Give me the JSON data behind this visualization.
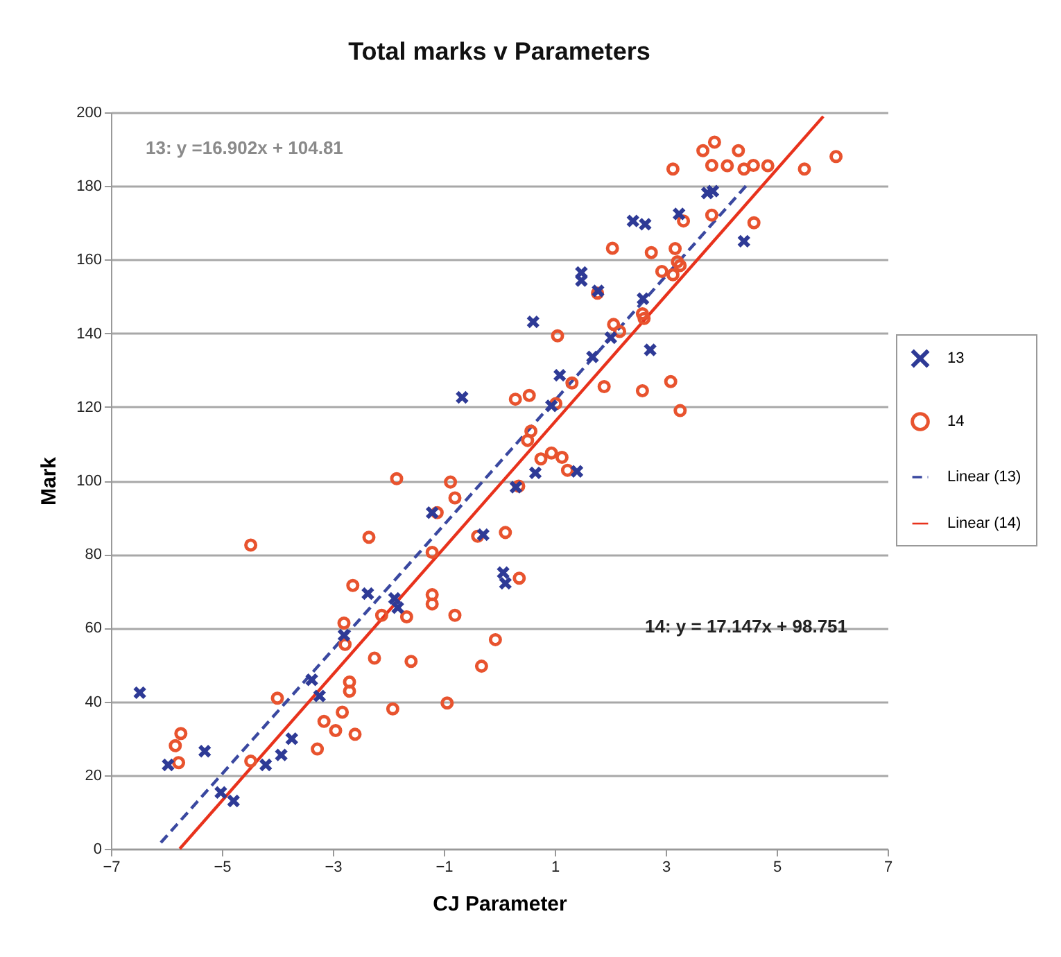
{
  "chart_data": {
    "type": "scatter",
    "title": "Total marks  v  Parameters",
    "xlabel": "CJ Parameter",
    "ylabel": "Mark",
    "xlim": [
      -7,
      7
    ],
    "xticks": [
      -7,
      -5,
      -3,
      -1,
      1,
      3,
      5,
      7
    ],
    "ylim": [
      0,
      200
    ],
    "yticks": [
      0,
      20,
      40,
      60,
      80,
      100,
      120,
      140,
      160,
      180,
      200
    ],
    "grid": "y",
    "legend": "right",
    "annotations": [
      "13: y =16.902x + 104.81",
      "14: y = 17.147x + 98.751"
    ],
    "series": [
      {
        "name": "13",
        "marker": "cross",
        "color": "#2e3a96",
        "x": [
          -6.48,
          -5.97,
          -5.31,
          -5.02,
          -4.79,
          -4.21,
          -3.93,
          -3.74,
          -3.38,
          -3.24,
          -2.8,
          -2.37,
          -1.89,
          -1.83,
          -1.21,
          -0.29,
          0.07,
          0.11,
          -0.67,
          0.3,
          0.61,
          3.75,
          3.85,
          3.24,
          2.41,
          2.63,
          4.41,
          1.48,
          1.48,
          1.78,
          2.59,
          2.01,
          1.68,
          2.72,
          1.09,
          0.94,
          0.65,
          1.4
        ],
        "values": [
          42.4,
          22.8,
          26.5,
          15.3,
          13,
          22.8,
          25.5,
          29.9,
          45.9,
          41.5,
          58,
          69.3,
          68,
          65.5,
          91.3,
          85.3,
          75,
          72.1,
          122.6,
          98.2,
          143.1,
          178.1,
          178.6,
          172.4,
          170.5,
          169.6,
          165,
          156.5,
          154.3,
          151.5,
          149.4,
          138.8,
          133.6,
          135.5,
          128.6,
          120.3,
          102.1,
          102.5
        ]
      },
      {
        "name": "14",
        "marker": "circle",
        "color": "#e8532e",
        "x": [
          -1.85,
          -0.88,
          -0.8,
          -4.48,
          -2.35,
          -1.12,
          -0.39,
          0.11,
          -1.21,
          -2.64,
          -1.21,
          -1.21,
          -0.8,
          -2.12,
          -1.67,
          -2.8,
          -2.78,
          -2.25,
          -1.59,
          -0.07,
          -0.32,
          -2.7,
          -2.7,
          -4.0,
          -2.83,
          -1.92,
          -0.94,
          -3.16,
          -2.95,
          -2.6,
          -3.28,
          -5.74,
          -5.84,
          -5.78,
          -4.48,
          0.36,
          0.35,
          3.88,
          3.67,
          4.31,
          3.13,
          3.83,
          4.11,
          4.41,
          4.58,
          4.84,
          5.5,
          6.07,
          3.32,
          3.83,
          4.59,
          2.04,
          2.74,
          3.17,
          3.21,
          3.26,
          2.93,
          3.13,
          1.77,
          2.06,
          2.17,
          2.58,
          2.61,
          1.05,
          1.89,
          2.58,
          3.09,
          3.26,
          0.29,
          0.54,
          1.31,
          1.02,
          0.57,
          0.51,
          0.75,
          0.94,
          1.13,
          1.23
        ],
        "values": [
          100.5,
          99.6,
          95.3,
          82.5,
          84.6,
          91.3,
          84.9,
          85.9,
          80.5,
          71.5,
          69,
          66.5,
          63.4,
          63.4,
          63,
          61.3,
          55.5,
          51.8,
          50.9,
          56.8,
          49.6,
          45.3,
          42.8,
          40.9,
          37.1,
          38,
          39.6,
          34.6,
          32.1,
          31.1,
          27.1,
          31.3,
          28,
          23.4,
          23.8,
          73.5,
          98.5,
          191.9,
          189.6,
          189.6,
          184.6,
          185.6,
          185.5,
          184.6,
          185.6,
          185.5,
          184.6,
          188,
          170.5,
          172.1,
          170,
          163.1,
          161.9,
          163,
          159.4,
          158.4,
          156.8,
          155.9,
          150.9,
          142.4,
          140.5,
          145.3,
          144,
          139.3,
          125.5,
          124.4,
          126.9,
          119,
          122.1,
          123.1,
          126.5,
          120.9,
          113.4,
          110.9,
          105.9,
          107.5,
          106.3,
          102.8
        ]
      },
      {
        "name": "Linear (13)",
        "type": "line",
        "line_style": "dashed",
        "color": "#3a48a0",
        "x": [
          -6.1,
          4.5
        ],
        "values": [
          1.7,
          180.9
        ]
      },
      {
        "name": "Linear (14)",
        "type": "line",
        "line_style": "solid",
        "color": "#e8321c",
        "x": [
          -5.76,
          5.84
        ],
        "values": [
          0,
          198.9
        ]
      }
    ]
  }
}
